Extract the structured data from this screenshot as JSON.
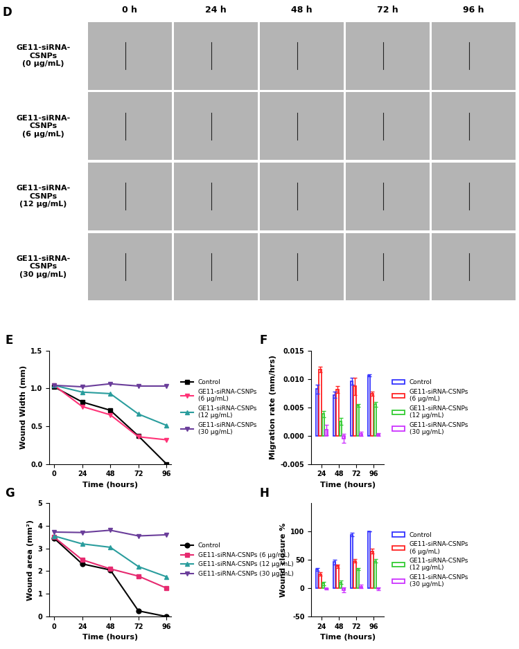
{
  "image_grid": {
    "label": "D",
    "columns": [
      "0 h",
      "24 h",
      "48 h",
      "72 h",
      "96 h"
    ],
    "rows": [
      "GE11-siRNA-\nCSNPs\n(0 μg/mL)",
      "GE11-siRNA-\nCSNPs\n(6 μg/mL)",
      "GE11-siRNA-\nCSNPs\n(12 μg/mL)",
      "GE11-siRNA-\nCSNPs\n(30 μg/mL)"
    ]
  },
  "chart_data": [
    {
      "type": "line",
      "annotation": "E",
      "x": [
        0,
        24,
        48,
        72,
        96
      ],
      "x_label": "Time (hours)",
      "y_label": "Wound Width (mm)",
      "xlim": [
        -4,
        100
      ],
      "xticks": [
        0,
        24,
        48,
        72,
        96
      ],
      "ylim": [
        0,
        1.5
      ],
      "yticks": [
        {
          "value": 0,
          "label": "0.0"
        },
        {
          "value": 0.5,
          "label": "0.5"
        },
        {
          "value": 1.0,
          "label": "1.0"
        },
        {
          "value": 1.5,
          "label": "1.5"
        }
      ],
      "legend": "right",
      "series": [
        {
          "name": "Control",
          "color": "#000000",
          "marker": "square",
          "values": [
            1.02,
            0.82,
            0.71,
            0.37,
            0.0
          ]
        },
        {
          "name": "GE11-siRNA-CSNPs\n(6 µg/mL)",
          "color": "#ff3377",
          "marker": "triangle_down",
          "values": [
            1.04,
            0.76,
            0.65,
            0.36,
            0.32
          ]
        },
        {
          "name": "GE11-siRNA-CSNPs\n(12 µg/mL)",
          "color": "#2a9d9d",
          "marker": "triangle_up",
          "values": [
            1.04,
            0.95,
            0.93,
            0.66,
            0.51
          ]
        },
        {
          "name": "GE11-siRNA-CSNPs\n(30 µg/mL)",
          "color": "#6a3d9a",
          "marker": "triangle_down",
          "values": [
            1.04,
            1.02,
            1.06,
            1.03,
            1.03
          ]
        }
      ]
    },
    {
      "type": "bar",
      "annotation": "F",
      "categories": [
        "24",
        "48",
        "72",
        "96"
      ],
      "x_label": "Time (hours)",
      "y_label": "Migration rate (mm/hrs)",
      "ylim": [
        -0.005,
        0.015
      ],
      "yticks": [
        {
          "value": -0.005,
          "label": "-0.005"
        },
        {
          "value": 0,
          "label": "0.000"
        },
        {
          "value": 0.005,
          "label": "0.005"
        },
        {
          "value": 0.01,
          "label": "0.010"
        },
        {
          "value": 0.015,
          "label": "0.015"
        }
      ],
      "legend": "right",
      "series": [
        {
          "name": "Control",
          "color": "#3333ff",
          "values": [
            0.0082,
            0.0072,
            0.0096,
            0.0106
          ],
          "errors": [
            0.0008,
            0.0005,
            0.0006,
            0.0002
          ]
        },
        {
          "name": "GE11-siRNA-CSNPs\n(6 µg/mL)",
          "color": "#ff2222",
          "values": [
            0.0117,
            0.0081,
            0.0087,
            0.0074
          ],
          "errors": [
            0.0005,
            0.0006,
            0.0015,
            0.0004
          ]
        },
        {
          "name": "GE11-siRNA-CSNPs\n(12 µg/mL)",
          "color": "#33cc33",
          "values": [
            0.0038,
            0.0025,
            0.0053,
            0.0055
          ],
          "errors": [
            0.0006,
            0.0006,
            0.0002,
            0.0004
          ]
        },
        {
          "name": "GE11-siRNA-CSNPs\n(30 µg/mL)",
          "color": "#cc33ff",
          "values": [
            0.001,
            -0.0005,
            0.0003,
            0.0002
          ],
          "errors": [
            0.0009,
            0.0008,
            0.0004,
            0.0003
          ]
        }
      ]
    },
    {
      "type": "line",
      "annotation": "G",
      "x": [
        0,
        24,
        48,
        72,
        96
      ],
      "x_label": "Time (hours)",
      "y_label": "Wound area (mm²)",
      "xlim": [
        -4,
        100
      ],
      "xticks": [
        0,
        24,
        48,
        72,
        96
      ],
      "ylim": [
        0,
        5
      ],
      "yticks": [
        0,
        1,
        2,
        3,
        4,
        5
      ],
      "legend": "right",
      "series": [
        {
          "name": "Control",
          "color": "#000000",
          "marker": "circle",
          "values": [
            3.45,
            2.32,
            2.05,
            0.25,
            0.0
          ]
        },
        {
          "name": "GE11-siRNA-CSNPs (6 µg/mL)",
          "color": "#e6296f",
          "marker": "square",
          "values": [
            3.5,
            2.5,
            2.1,
            1.78,
            1.25
          ]
        },
        {
          "name": "GE11-siRNA-CSNPs (12 µg/mL)",
          "color": "#2a9d9d",
          "marker": "triangle_up",
          "values": [
            3.55,
            3.2,
            3.05,
            2.2,
            1.75
          ]
        },
        {
          "name": "GE11-siRNA-CSNPs (30 µg/mL)",
          "color": "#6a3d9a",
          "marker": "triangle_down",
          "values": [
            3.72,
            3.7,
            3.8,
            3.55,
            3.6
          ]
        }
      ]
    },
    {
      "type": "bar",
      "annotation": "H",
      "categories": [
        "24",
        "48",
        "72",
        "96"
      ],
      "x_label": "Time (hours)",
      "y_label": "Wound closure %",
      "ylim": [
        -50,
        150
      ],
      "yticks": [
        -50,
        0,
        50,
        100
      ],
      "legend": "right",
      "series": [
        {
          "name": "Control",
          "color": "#3333ff",
          "values": [
            33,
            46,
            94,
            100
          ],
          "errors": [
            2,
            4,
            3,
            0.5
          ]
        },
        {
          "name": "GE11-siRNA-CSNPs\n(6 µg/mL)",
          "color": "#ff2222",
          "values": [
            25,
            39,
            48,
            65
          ],
          "errors": [
            3,
            3,
            3,
            4
          ]
        },
        {
          "name": "GE11-siRNA-CSNPs\n(12 µg/mL)",
          "color": "#33cc33",
          "values": [
            8,
            10,
            34,
            48
          ],
          "errors": [
            3,
            3,
            2,
            3
          ]
        },
        {
          "name": "GE11-siRNA-CSNPs\n(30 µg/mL)",
          "color": "#cc33ff",
          "values": [
            -1,
            -3,
            3,
            -1
          ],
          "errors": [
            1,
            4,
            3,
            2
          ]
        }
      ]
    }
  ]
}
